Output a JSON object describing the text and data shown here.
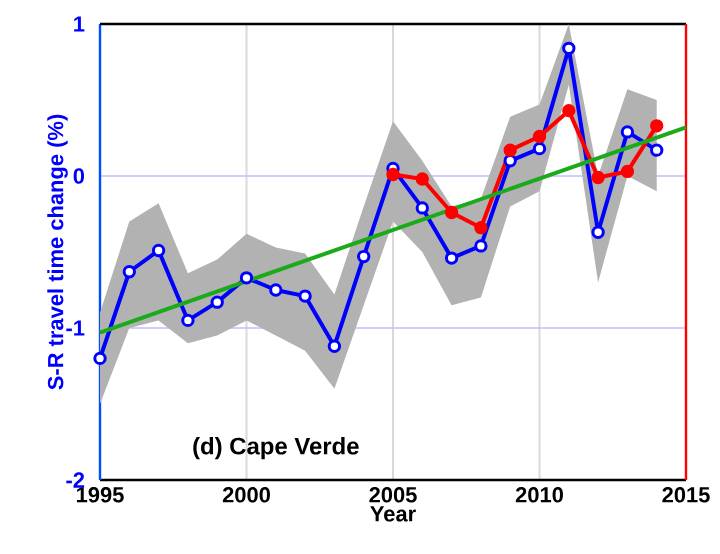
{
  "chart_data": {
    "type": "line",
    "xlabel": "Year",
    "ylabel": "S-R travel time change (%)",
    "xlim": [
      1995,
      2015
    ],
    "xticks": [
      1995,
      2000,
      2005,
      2010,
      2015
    ],
    "ylim": [
      -2,
      1
    ],
    "yticks": [
      -2,
      -1,
      0,
      1
    ],
    "grid": true,
    "marker": "circle",
    "line_style": "solid",
    "annotations": [
      "(d) Cape Verde"
    ],
    "series": [
      {
        "color": "#0000ff",
        "x": [
          1995,
          1996,
          1997,
          1998,
          1999,
          2000,
          2001,
          2002,
          2003,
          2004,
          2005,
          2006,
          2007,
          2008,
          2009,
          2010,
          2011,
          2012,
          2013,
          2014
        ],
        "values": [
          -1.2,
          -0.63,
          -0.49,
          -0.95,
          -0.83,
          -0.67,
          -0.75,
          -0.79,
          -1.12,
          -0.53,
          0.05,
          -0.21,
          -0.54,
          -0.46,
          0.1,
          0.18,
          0.84,
          -0.37,
          0.29,
          0.17
        ],
        "lower": [
          -1.5,
          -1.0,
          -0.95,
          -1.1,
          -1.05,
          -0.95,
          -1.05,
          -1.15,
          -1.4,
          -0.85,
          -0.3,
          -0.5,
          -0.85,
          -0.8,
          -0.2,
          -0.1,
          0.6,
          -0.7,
          0.0,
          -0.1
        ],
        "upper": [
          -0.9,
          -0.3,
          -0.18,
          -0.64,
          -0.55,
          -0.38,
          -0.47,
          -0.51,
          -0.78,
          -0.2,
          0.36,
          0.1,
          -0.2,
          -0.15,
          0.39,
          0.47,
          1.0,
          0.0,
          0.57,
          0.5
        ]
      },
      {
        "color": "#ff0000",
        "x": [
          2005,
          2006,
          2007,
          2008,
          2009,
          2010,
          2011,
          2012,
          2013,
          2014
        ],
        "values": [
          0.01,
          -0.02,
          -0.24,
          -0.34,
          0.17,
          0.26,
          0.43,
          -0.01,
          0.03,
          0.33
        ]
      },
      {
        "type": "line",
        "marker": "none",
        "color": "#1aaa1a",
        "x": [
          1995,
          2015
        ],
        "values": [
          -1.03,
          0.32
        ]
      }
    ]
  }
}
